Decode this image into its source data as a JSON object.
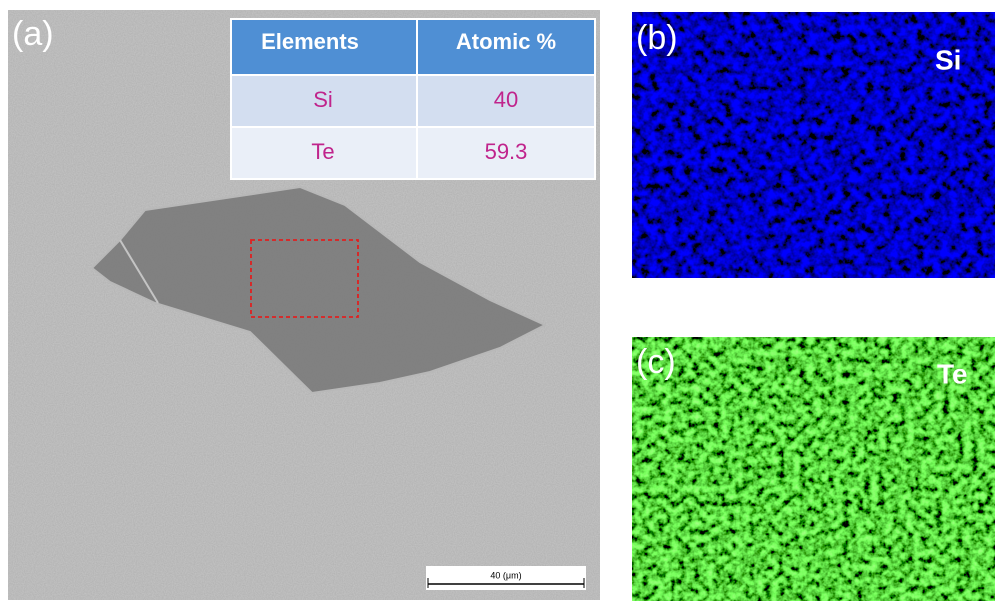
{
  "panels": {
    "a": "(a)",
    "b": "(b)",
    "c": "(c)"
  },
  "table": {
    "header": [
      "Elements",
      "Atomic %"
    ],
    "rows": [
      [
        "Si",
        40
      ],
      [
        "Te",
        59.3
      ]
    ]
  },
  "maps": {
    "si": "Si",
    "te": "Te"
  },
  "scale_bar": "40 (μm)"
}
